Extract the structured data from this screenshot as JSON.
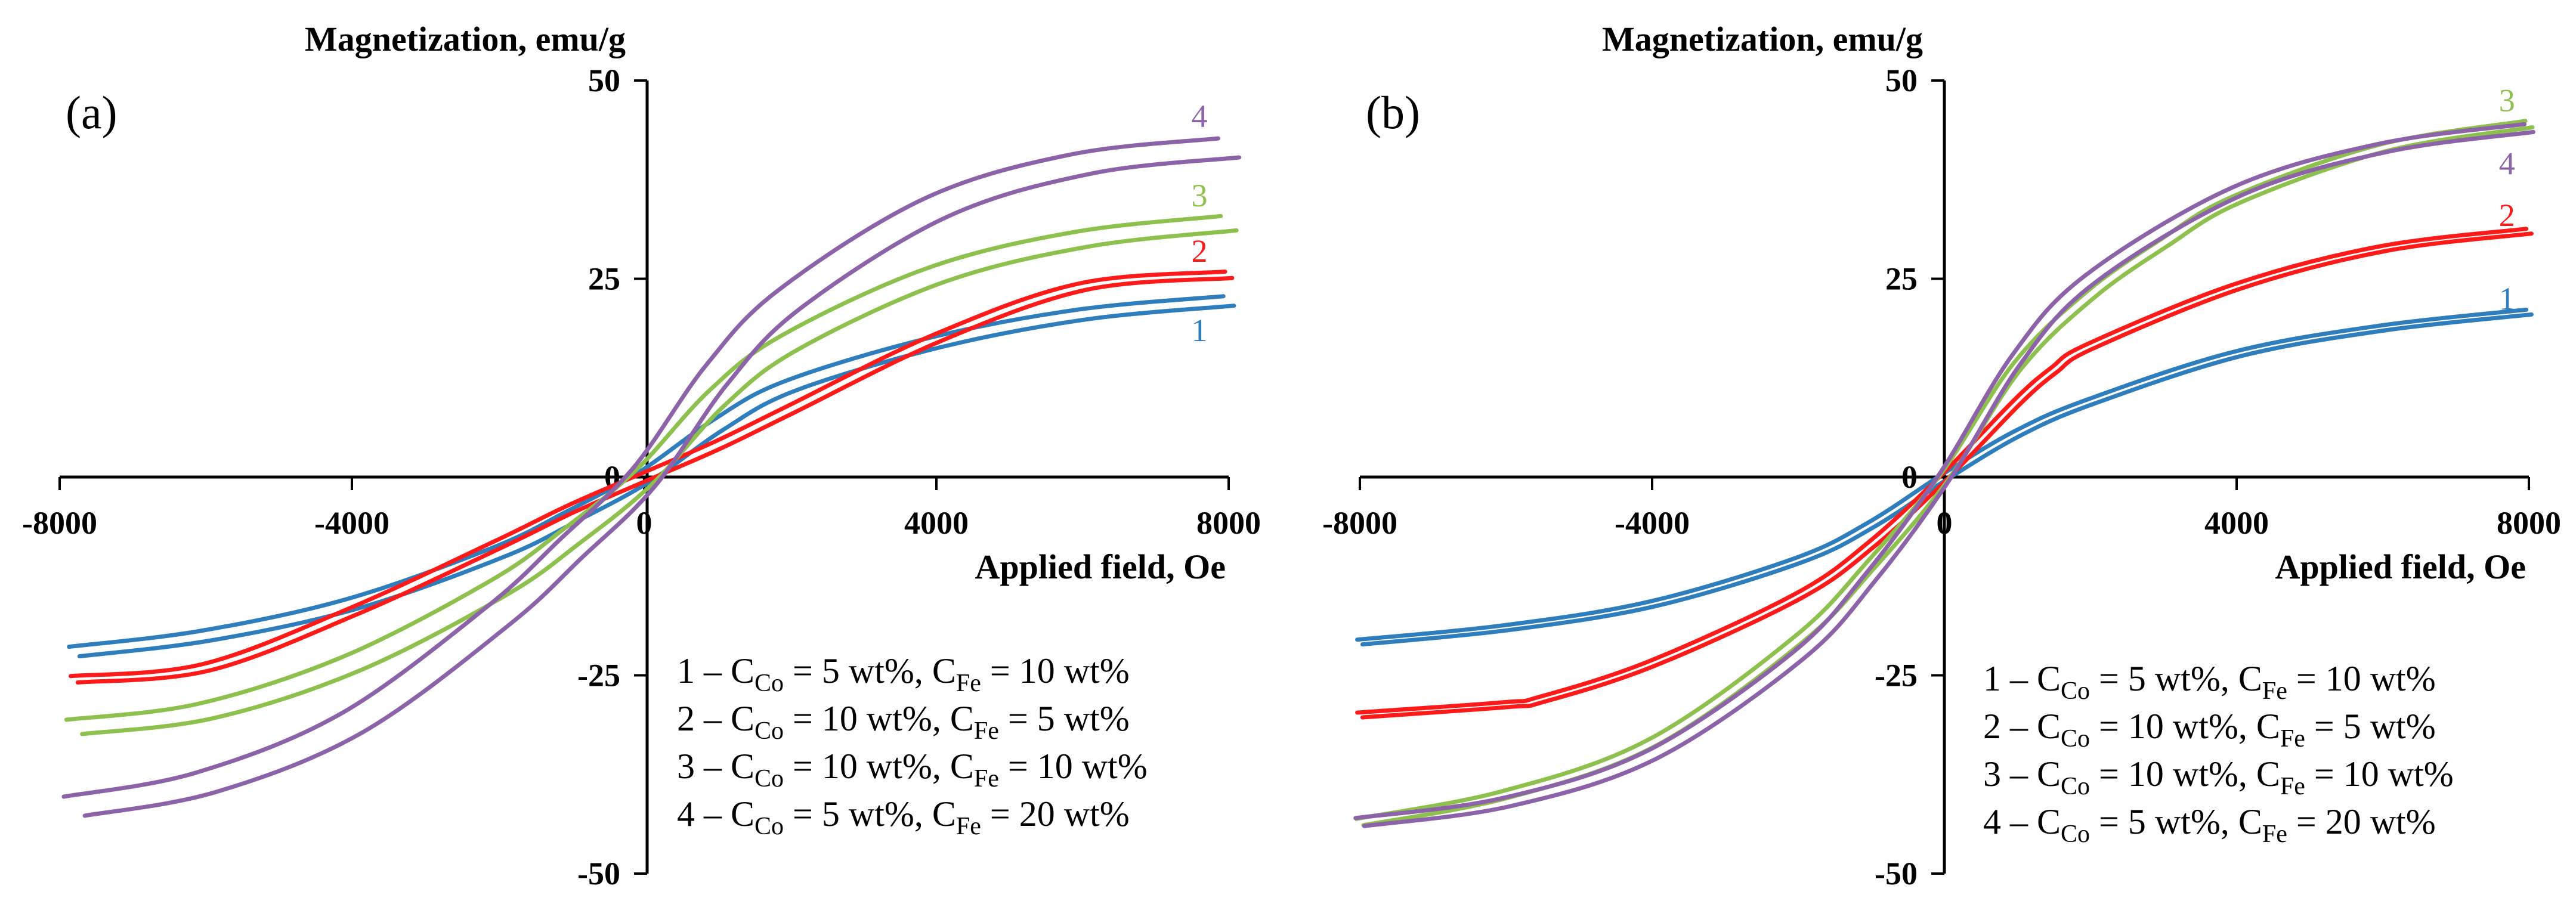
{
  "chart_data": [
    {
      "type": "line",
      "panel_label": "(a)",
      "ylabel": "Magnetization, emu/g",
      "xlabel": "Applied field, Oe",
      "xlim": [
        -8000,
        8000
      ],
      "ylim": [
        -50,
        50
      ],
      "xticks": [
        -8000,
        -4000,
        0,
        4000,
        8000
      ],
      "yticks": [
        -50,
        -25,
        0,
        25,
        50
      ],
      "grid": false,
      "legend_position": "bottom-right",
      "series": [
        {
          "name": "1",
          "color": "#2e7dbd",
          "hysteresis_gap": 0.6,
          "x": [
            -7800,
            -6000,
            -4000,
            -2000,
            -1000,
            0,
            1000,
            2000,
            4000,
            6000,
            8000
          ],
          "y": [
            -22.0,
            -20.0,
            -16.0,
            -9.5,
            -5.0,
            0,
            6.5,
            11.5,
            17.0,
            20.5,
            22.2
          ]
        },
        {
          "name": "2",
          "color": "#ff1a1a",
          "hysteresis_gap": 0.4,
          "x": [
            -7800,
            -6000,
            -4000,
            -2000,
            -1000,
            0,
            1000,
            2000,
            4000,
            6000,
            8000
          ],
          "y": [
            -25.5,
            -24.0,
            -17.0,
            -8.5,
            -4.0,
            0,
            4.0,
            8.5,
            17.5,
            24.0,
            25.5
          ]
        },
        {
          "name": "3",
          "color": "#8dc04d",
          "hysteresis_gap": 0.9,
          "x": [
            -7800,
            -6000,
            -4000,
            -2000,
            -1000,
            0,
            1000,
            2000,
            4000,
            6000,
            8000
          ],
          "y": [
            -31.5,
            -29.5,
            -23.5,
            -14.0,
            -7.5,
            0,
            10.0,
            17.0,
            25.5,
            30.0,
            32.0
          ]
        },
        {
          "name": "4",
          "color": "#8c62a8",
          "hysteresis_gap": 1.2,
          "x": [
            -7800,
            -6000,
            -4000,
            -2000,
            -1000,
            0,
            1000,
            2000,
            4000,
            6000,
            8000
          ],
          "y": [
            -41.5,
            -38.5,
            -31.0,
            -17.5,
            -9.0,
            0,
            13.0,
            22.5,
            34.0,
            39.5,
            41.5
          ]
        }
      ],
      "curve_labels": [
        {
          "text": "4",
          "x": 7600,
          "y": 45.5,
          "color": "#8c62a8"
        },
        {
          "text": "3",
          "x": 7600,
          "y": 35.5,
          "color": "#8dc04d"
        },
        {
          "text": "2",
          "x": 7600,
          "y": 28.5,
          "color": "#ff1a1a"
        },
        {
          "text": "1",
          "x": 7600,
          "y": 18.5,
          "color": "#2e7dbd"
        }
      ],
      "legend": [
        {
          "num": "1",
          "co_value": "5",
          "fe_value": "10"
        },
        {
          "num": "2",
          "co_value": "10",
          "fe_value": "5"
        },
        {
          "num": "3",
          "co_value": "10",
          "fe_value": "10"
        },
        {
          "num": "4",
          "co_value": "5",
          "fe_value": "20"
        }
      ]
    },
    {
      "type": "line",
      "panel_label": "(b)",
      "ylabel": "Magnetization, emu/g",
      "xlabel": "Applied field, Oe",
      "xlim": [
        -8000,
        8000
      ],
      "ylim": [
        -50,
        50
      ],
      "xticks": [
        -8000,
        -4000,
        0,
        4000,
        8000
      ],
      "yticks": [
        -50,
        -25,
        0,
        25,
        50
      ],
      "grid": false,
      "legend_position": "bottom-right",
      "series": [
        {
          "name": "1",
          "color": "#2e7dbd",
          "hysteresis_gap": 0.3,
          "x": [
            -8000,
            -6000,
            -4000,
            -2000,
            -1000,
            0,
            1000,
            2000,
            4000,
            6000,
            8000
          ],
          "y": [
            -20.8,
            -19.0,
            -16.0,
            -10.5,
            -6.0,
            0,
            5.5,
            9.5,
            15.5,
            18.8,
            20.8
          ]
        },
        {
          "name": "2",
          "color": "#ff1a1a",
          "hysteresis_gap": 0.3,
          "x": [
            -8000,
            -6000,
            -5500,
            -4000,
            -2000,
            -1000,
            0,
            1000,
            1500,
            2000,
            4000,
            6000,
            8000
          ],
          "y": [
            -30.0,
            -28.7,
            -28.0,
            -23.5,
            -15.0,
            -8.5,
            0,
            9.5,
            13.5,
            16.5,
            24.0,
            28.8,
            31.0
          ]
        },
        {
          "name": "3",
          "color": "#8dc04d",
          "hysteresis_gap": 0.4,
          "x": [
            -8000,
            -6000,
            -4000,
            -2000,
            -1000,
            0,
            1000,
            2000,
            3000,
            4000,
            6000,
            8000
          ],
          "y": [
            -43.5,
            -40.0,
            -33.5,
            -20.5,
            -11.0,
            0,
            14.0,
            23.0,
            29.5,
            35.0,
            41.5,
            44.5
          ]
        },
        {
          "name": "4",
          "color": "#8c62a8",
          "hysteresis_gap": 0.5,
          "x": [
            -8000,
            -6000,
            -4000,
            -2000,
            -1000,
            0,
            1000,
            2000,
            4000,
            6000,
            8000
          ],
          "y": [
            -43.5,
            -41.0,
            -35.0,
            -22.5,
            -12.5,
            0,
            15.0,
            25.0,
            36.0,
            41.5,
            44.0
          ]
        }
      ],
      "curve_labels": [
        {
          "text": "3",
          "x": 7700,
          "y": 47.5,
          "color": "#8dc04d"
        },
        {
          "text": "4",
          "x": 7700,
          "y": 39.5,
          "color": "#8c62a8"
        },
        {
          "text": "2",
          "x": 7700,
          "y": 33.0,
          "color": "#ff1a1a"
        },
        {
          "text": "1",
          "x": 7700,
          "y": 22.5,
          "color": "#2e7dbd"
        }
      ],
      "legend": [
        {
          "num": "1",
          "co_value": "5",
          "fe_value": "10"
        },
        {
          "num": "2",
          "co_value": "10",
          "fe_value": "5"
        },
        {
          "num": "3",
          "co_value": "10",
          "fe_value": "10"
        },
        {
          "num": "4",
          "co_value": "5",
          "fe_value": "20"
        }
      ]
    }
  ]
}
